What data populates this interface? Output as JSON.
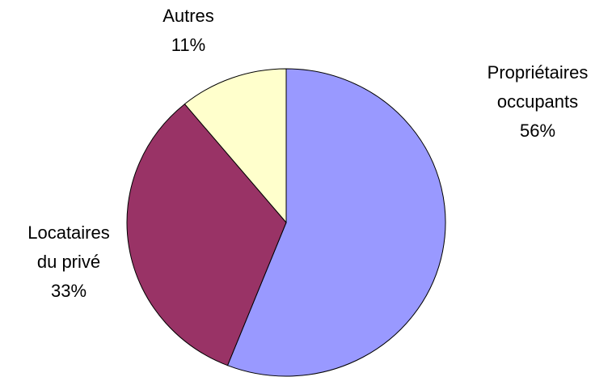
{
  "chart_data": {
    "type": "pie",
    "categories": [
      "Propriétaires occupants",
      "Locataires du privé",
      "Autres"
    ],
    "values": [
      56,
      33,
      11
    ],
    "value_labels": [
      "56%",
      "33%",
      "11%"
    ],
    "colors": [
      "#9999ff",
      "#993366",
      "#ffffcc"
    ]
  }
}
